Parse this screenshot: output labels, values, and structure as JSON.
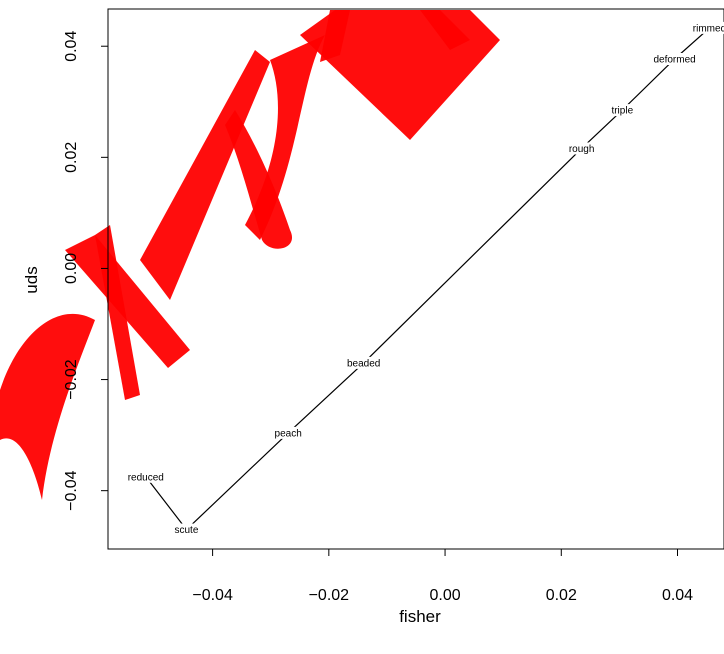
{
  "chart_data": {
    "type": "line",
    "title": "",
    "xlabel": "fisher",
    "ylabel": "uds",
    "xlim": [
      -0.058,
      0.048
    ],
    "ylim": [
      -0.0505,
      0.0467
    ],
    "x_ticks": [
      -0.04,
      -0.02,
      0.0,
      0.02,
      0.04
    ],
    "x_tick_labels": [
      "−0.04",
      "−0.02",
      "0.00",
      "0.02",
      "0.04"
    ],
    "y_ticks": [
      -0.04,
      -0.02,
      0.0,
      0.02,
      0.04
    ],
    "y_tick_labels": [
      "−0.04",
      "−0.02",
      "0.00",
      "0.02",
      "0.04"
    ],
    "grid": false,
    "legend": "none",
    "line_color": "#000000",
    "series": [
      {
        "points": [
          {
            "label": "reduced",
            "x": -0.0515,
            "y": -0.0375
          },
          {
            "label": "scute",
            "x": -0.0445,
            "y": -0.047
          },
          {
            "label": "peach",
            "x": -0.027,
            "y": -0.0296
          },
          {
            "label": "beaded",
            "x": -0.014,
            "y": -0.017
          },
          {
            "label": "rough",
            "x": 0.0235,
            "y": 0.0216
          },
          {
            "label": "triple",
            "x": 0.0305,
            "y": 0.0285
          },
          {
            "label": "deformed",
            "x": 0.0395,
            "y": 0.0377
          },
          {
            "label": "rimmed",
            "x": 0.0455,
            "y": 0.0433
          }
        ]
      }
    ]
  },
  "watermark": {
    "text": "OM JAN",
    "color": "#ff0000"
  }
}
